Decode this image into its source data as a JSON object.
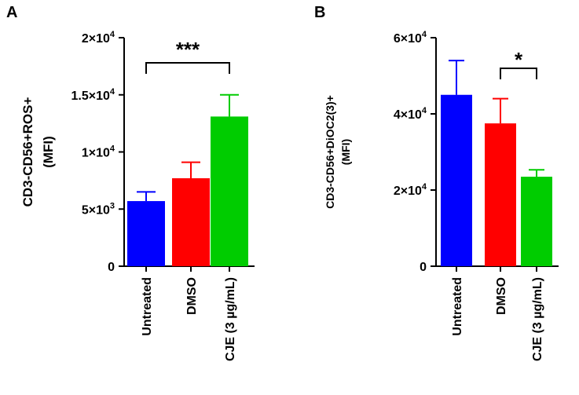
{
  "chart_data": [
    {
      "type": "bar",
      "panel": "A",
      "ylabel": [
        "CD3-CD56+ROS+",
        "(MFI)"
      ],
      "categories": [
        "Untreated",
        "DMSO",
        "CJE (3 µg/mL)"
      ],
      "values": [
        5700,
        7700,
        13100
      ],
      "errors": [
        800,
        1400,
        1900
      ],
      "colors": [
        "#0000ff",
        "#ff0000",
        "#00cc00"
      ],
      "ylim": [
        0,
        20000
      ],
      "yticks": [
        {
          "value": 0,
          "mant": "0",
          "exp": ""
        },
        {
          "value": 5000,
          "mant": "5×10",
          "exp": "3"
        },
        {
          "value": 10000,
          "mant": "1×10",
          "exp": "4"
        },
        {
          "value": 15000,
          "mant": "1.5×10",
          "exp": "4"
        },
        {
          "value": 20000,
          "mant": "2×10",
          "exp": "4"
        }
      ],
      "significance": {
        "from": 0,
        "to": 2,
        "label": "***"
      }
    },
    {
      "type": "bar",
      "panel": "B",
      "ylabel": [
        "CD3-CD56+DiOC2(3)+",
        "(MFI)"
      ],
      "categories": [
        "Untreated",
        "DMSO",
        "CJE (3 µg/mL)"
      ],
      "values": [
        45000,
        37500,
        23500
      ],
      "errors": [
        9000,
        6500,
        1800
      ],
      "colors": [
        "#0000ff",
        "#ff0000",
        "#00cc00"
      ],
      "ylim": [
        0,
        60000
      ],
      "yticks": [
        {
          "value": 0,
          "mant": "0",
          "exp": ""
        },
        {
          "value": 20000,
          "mant": "2×10",
          "exp": "4"
        },
        {
          "value": 40000,
          "mant": "4×10",
          "exp": "4"
        },
        {
          "value": 60000,
          "mant": "6×10",
          "exp": "4"
        }
      ],
      "significance": {
        "from": 1,
        "to": 2,
        "label": "*"
      }
    }
  ]
}
